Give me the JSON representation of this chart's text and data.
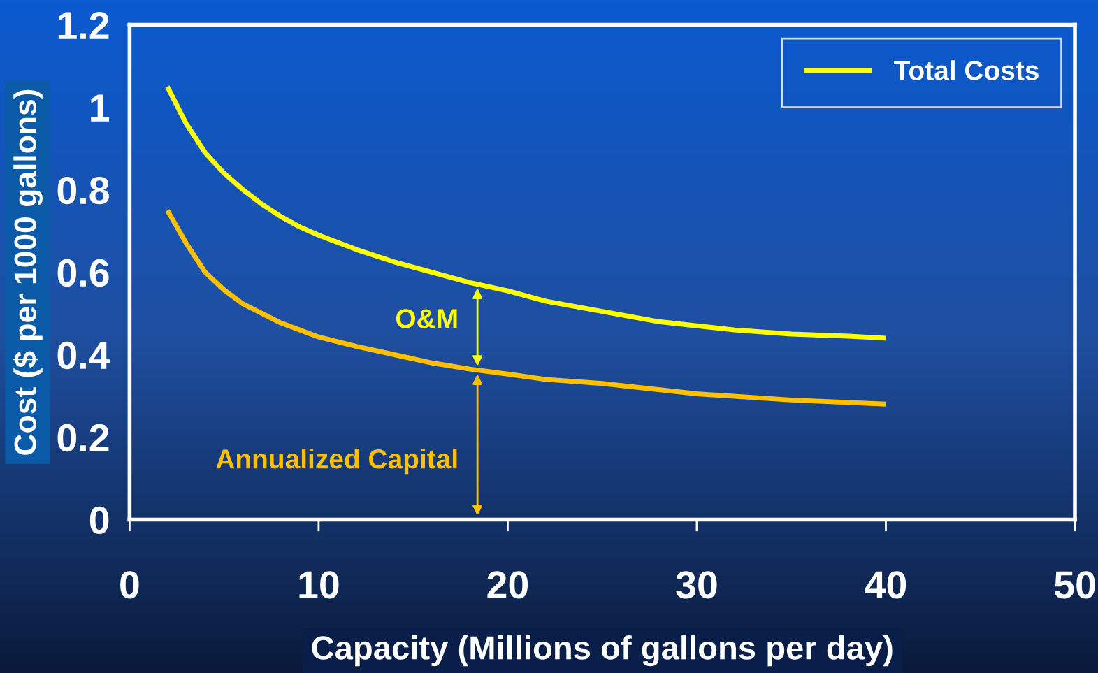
{
  "chart_data": {
    "type": "line",
    "xlabel": "Capacity (Millions of gallons per day)",
    "ylabel": "Cost ($ per 1000 gallons)",
    "series": [
      {
        "name": "Total Costs",
        "color": "#ffff00",
        "x": [
          2,
          3,
          4,
          5,
          6,
          7,
          8,
          9,
          10,
          12,
          14,
          16,
          18,
          20,
          22,
          25,
          28,
          30,
          32,
          35,
          38,
          40
        ],
        "values": [
          1.05,
          0.96,
          0.89,
          0.84,
          0.8,
          0.765,
          0.735,
          0.71,
          0.69,
          0.655,
          0.625,
          0.6,
          0.575,
          0.555,
          0.53,
          0.505,
          0.48,
          0.47,
          0.46,
          0.45,
          0.445,
          0.44
        ]
      },
      {
        "color": "#ffc000",
        "x": [
          2,
          3,
          4,
          5,
          6,
          8,
          10,
          12,
          14,
          16,
          18,
          20,
          22,
          25,
          30,
          35,
          40
        ],
        "values": [
          0.75,
          0.67,
          0.6,
          0.557,
          0.523,
          0.477,
          0.443,
          0.42,
          0.4,
          0.38,
          0.365,
          0.353,
          0.34,
          0.33,
          0.305,
          0.29,
          0.28
        ]
      }
    ],
    "annotations": [
      "O&M",
      "Annualized Capital"
    ],
    "xlim": [
      0,
      50
    ],
    "xticks": [
      0,
      10,
      20,
      30,
      40,
      50
    ],
    "ylim": [
      0,
      1.2
    ],
    "yticks": [
      0,
      0.2,
      0.4,
      0.6,
      0.8,
      1,
      1.2
    ],
    "grid": false,
    "legend": "top right",
    "marker": "none",
    "line_style": "solid"
  }
}
